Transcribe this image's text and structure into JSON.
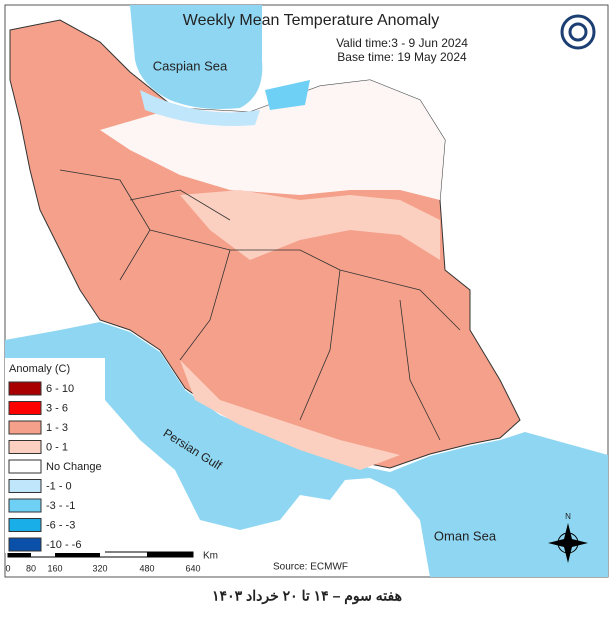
{
  "header": {
    "title": "Weekly Mean Temperature Anomaly",
    "valid_time": "Valid time:3 - 9 Jun 2024",
    "base_time": "Base time: 19 May 2024"
  },
  "map_labels": {
    "caspian_sea": "Caspian Sea",
    "persian_gulf": "Persian Gulf",
    "oman_sea": "Oman Sea"
  },
  "legend": {
    "title": "Anomaly (C)",
    "items": [
      {
        "label": "6 - 10",
        "color": "#a80000"
      },
      {
        "label": "3 - 6",
        "color": "#ff0000"
      },
      {
        "label": "1 - 3",
        "color": "#f4a08a"
      },
      {
        "label": "0 - 1",
        "color": "#fbd0c0"
      },
      {
        "label": "No Change",
        "color": "#ffffff"
      },
      {
        "label": "-1 - 0",
        "color": "#bfe6fa"
      },
      {
        "label": "-3 - -1",
        "color": "#6fd0f5"
      },
      {
        "label": "-6 - -3",
        "color": "#1aaee8"
      },
      {
        "label": "-10 - -6",
        "color": "#0a4fa8"
      }
    ]
  },
  "scale_bar": {
    "unit": "Km",
    "ticks": [
      0,
      80,
      160,
      320,
      480,
      640
    ]
  },
  "source": "Source: ECMWF",
  "caption": "هفته سوم – ۱۴ تا ۲۰ خرداد ۱۴۰۳"
}
